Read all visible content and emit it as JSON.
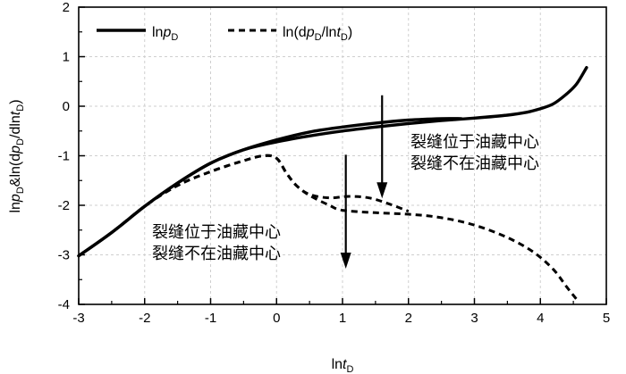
{
  "chart_data": {
    "type": "line",
    "xlabel": "lnt_D",
    "ylabel": "lnp_D&ln(dp_D/dlnt_D)",
    "xlim": [
      -3,
      5
    ],
    "ylim": [
      -4,
      2
    ],
    "x_ticks": [
      "-3",
      "-2",
      "-1",
      "0",
      "1",
      "2",
      "3",
      "4",
      "5"
    ],
    "y_ticks": [
      "2",
      "1",
      "0",
      "-1",
      "-2",
      "-3",
      "-4"
    ],
    "grid": true,
    "legend": {
      "placement": "top-left",
      "entries": [
        "lnp_D",
        "ln(dp_D/lnt_D)"
      ]
    },
    "series": [
      {
        "name": "lnp_D",
        "style": "solid",
        "color": "#000000",
        "curves": [
          {
            "label": "裂缝位于油藏中心",
            "x": [
              -3.0,
              -2.5,
              -2.0,
              -1.5,
              -1.0,
              -0.5,
              0.0,
              0.5,
              1.0,
              1.5,
              2.0,
              2.5,
              2.8
            ],
            "y": [
              -3.02,
              -2.55,
              -2.02,
              -1.55,
              -1.15,
              -0.88,
              -0.68,
              -0.52,
              -0.42,
              -0.34,
              -0.28,
              -0.25,
              -0.25
            ]
          },
          {
            "label": "裂缝不在油藏中心",
            "x": [
              -3.0,
              -2.5,
              -2.0,
              -1.5,
              -1.0,
              -0.5,
              0.0,
              0.5,
              1.0,
              1.5,
              2.0,
              2.5,
              3.0,
              3.5,
              3.8,
              4.0,
              4.2,
              4.4,
              4.55,
              4.7
            ],
            "y": [
              -3.02,
              -2.55,
              -2.02,
              -1.55,
              -1.15,
              -0.88,
              -0.72,
              -0.6,
              -0.5,
              -0.42,
              -0.35,
              -0.29,
              -0.24,
              -0.18,
              -0.12,
              -0.05,
              0.05,
              0.25,
              0.45,
              0.78
            ]
          }
        ]
      },
      {
        "name": "ln(dp_D/lnt_D)",
        "style": "dashed",
        "color": "#000000",
        "curves": [
          {
            "label": "裂缝位于油藏中心",
            "x": [
              -3.0,
              -2.5,
              -2.0,
              -1.5,
              -1.0,
              -0.5,
              -0.2,
              0.0,
              0.15,
              0.3,
              0.5,
              0.8,
              1.1,
              1.4,
              1.7,
              2.0
            ],
            "y": [
              -3.02,
              -2.55,
              -2.02,
              -1.6,
              -1.32,
              -1.1,
              -1.0,
              -1.05,
              -1.35,
              -1.6,
              -1.78,
              -1.85,
              -1.82,
              -1.85,
              -1.97,
              -2.12
            ]
          },
          {
            "label": "裂缝不在油藏中心",
            "x": [
              -3.0,
              -2.5,
              -2.0,
              -1.5,
              -1.0,
              -0.5,
              -0.2,
              0.0,
              0.15,
              0.3,
              0.5,
              0.8,
              1.0,
              1.5,
              2.0,
              2.5,
              3.0,
              3.5,
              3.9,
              4.2,
              4.4,
              4.55
            ],
            "y": [
              -3.02,
              -2.55,
              -2.02,
              -1.6,
              -1.32,
              -1.1,
              -1.0,
              -1.05,
              -1.35,
              -1.6,
              -1.8,
              -2.0,
              -2.1,
              -2.15,
              -2.18,
              -2.25,
              -2.4,
              -2.65,
              -2.95,
              -3.3,
              -3.65,
              -3.9
            ]
          }
        ]
      }
    ],
    "annotations": [
      {
        "lines": [
          "裂缝位于油藏中心",
          "裂缝不在油藏中心"
        ],
        "arrow_from": [
          1.6,
          0.22
        ],
        "arrow_to": [
          1.6,
          -1.86
        ]
      },
      {
        "lines": [
          "裂缝位于油藏中心",
          "裂缝不在油藏中心"
        ],
        "arrow_from": [
          1.05,
          -0.98
        ],
        "arrow_to": [
          1.05,
          -3.28
        ]
      }
    ]
  }
}
